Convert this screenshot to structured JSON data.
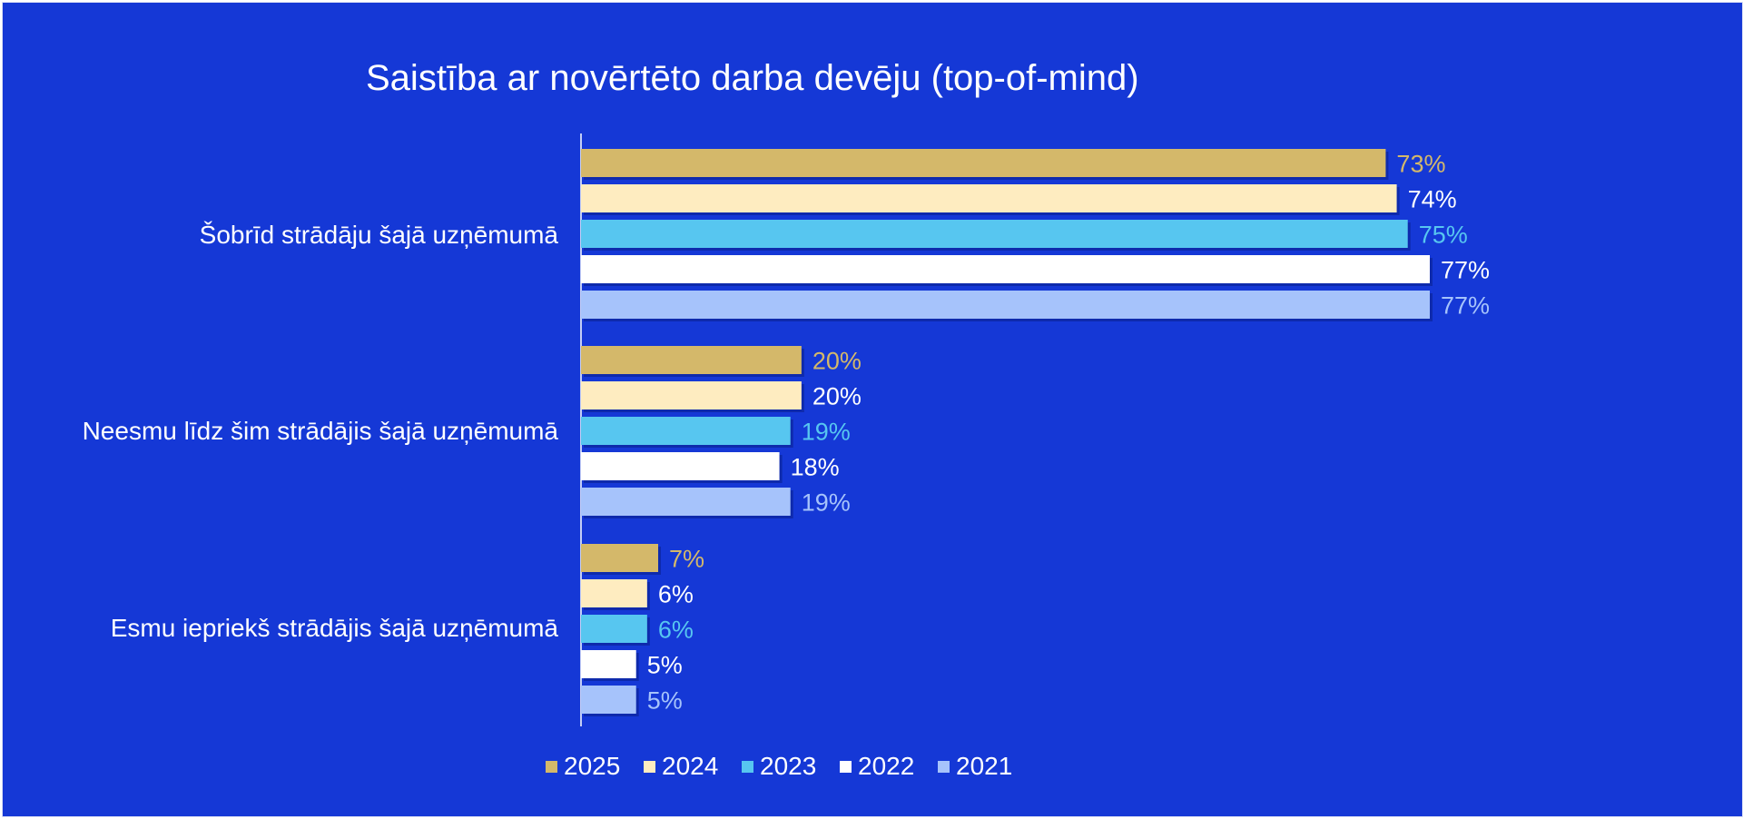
{
  "chart_data": {
    "type": "bar",
    "orientation": "horizontal",
    "title": "Saistība ar novērtēto darba devēju (top-of-mind)",
    "categories": [
      "Šobrīd strādāju šajā uzņēmumā",
      "Neesmu līdz šim strādājis šajā uzņēmumā",
      "Esmu iepriekš strādājis šajā uzņēmumā"
    ],
    "series": [
      {
        "name": "2025",
        "color": "#d4b86a",
        "values": [
          73,
          20,
          7
        ]
      },
      {
        "name": "2024",
        "color": "#feecc0",
        "values": [
          74,
          20,
          6
        ]
      },
      {
        "name": "2023",
        "color": "#57c6f0",
        "values": [
          75,
          19,
          6
        ]
      },
      {
        "name": "2022",
        "color": "#ffffff",
        "values": [
          77,
          18,
          5
        ]
      },
      {
        "name": "2021",
        "color": "#a6c3fb",
        "values": [
          77,
          19,
          5
        ]
      }
    ],
    "value_label_colors": [
      "#d4b86a",
      "#ffffff",
      "#57c6f0",
      "#ffffff",
      "#a6c3fb"
    ],
    "value_suffix": "%",
    "xlim": [
      0,
      77
    ],
    "grid": false,
    "legend_position": "bottom",
    "background": "#1538d6"
  }
}
